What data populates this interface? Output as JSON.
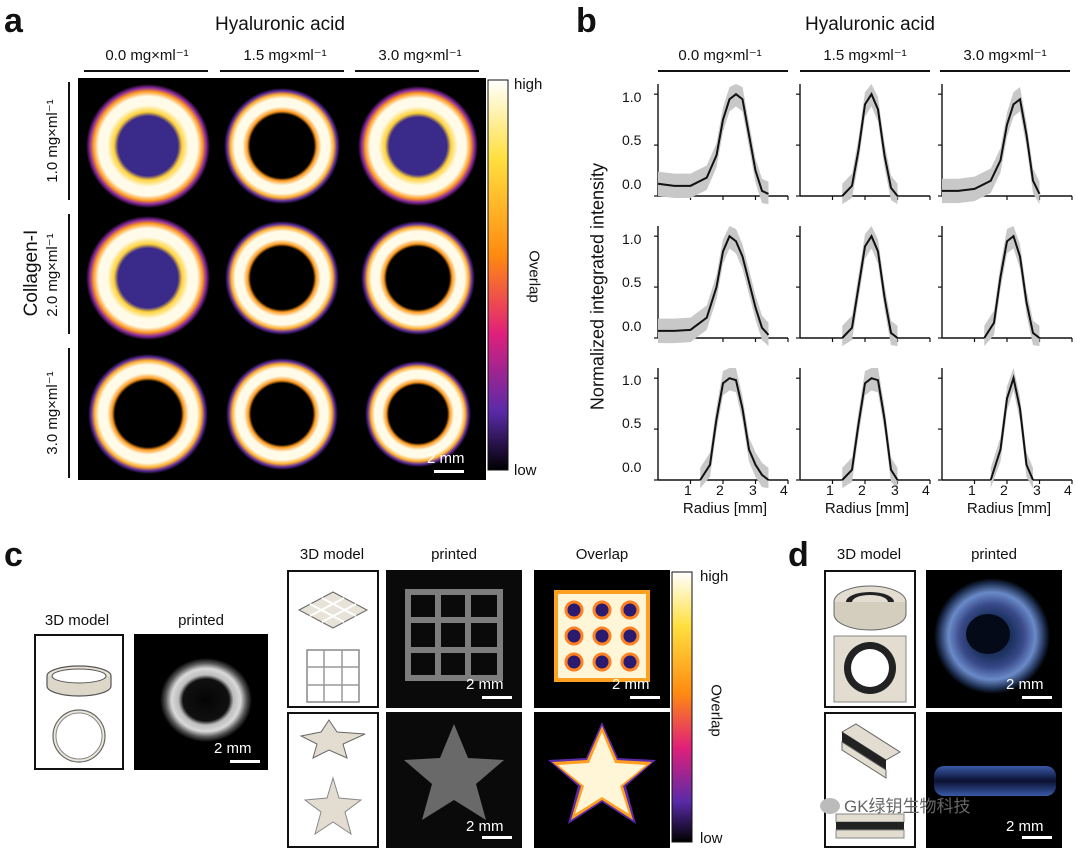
{
  "panels": {
    "a": "a",
    "b": "b",
    "c": "c",
    "d": "d"
  },
  "panel_a": {
    "top_title": "Hyaluronic acid",
    "col_labels": [
      "0.0 mg×ml⁻¹",
      "1.5 mg×ml⁻¹",
      "3.0 mg×ml⁻¹"
    ],
    "row_title": "Collagen-I",
    "row_labels": [
      "1.0 mg×ml⁻¹",
      "2.0 mg×ml⁻¹",
      "3.0 mg×ml⁻¹"
    ],
    "colorbar": {
      "high": "high",
      "low": "low",
      "title": "Overlap"
    },
    "scale_bar": "2 mm"
  },
  "panel_b": {
    "top_title": "Hyaluronic acid",
    "col_labels": [
      "0.0 mg×ml⁻¹",
      "1.5 mg×ml⁻¹",
      "3.0 mg×ml⁻¹"
    ],
    "ylabel": "Normalized integrated intensity",
    "xlabel": "Radius [mm]",
    "yticks": [
      "1.0",
      "0.5",
      "0.0"
    ],
    "xticks": [
      "1",
      "2",
      "3",
      "4"
    ]
  },
  "panel_c": {
    "ring_model_label": "3D model",
    "ring_printed_label": "printed",
    "grid_model_label": "3D model",
    "grid_printed_label": "printed",
    "overlap_label": "Overlap",
    "colorbar": {
      "high": "high",
      "low": "low",
      "title": "Overlap"
    },
    "scale_bar": "2 mm"
  },
  "panel_d": {
    "model_label": "3D model",
    "printed_label": "printed",
    "scale_bar": "2 mm"
  },
  "watermark": "GK绿钥生物科技",
  "chart_data": [
    {
      "type": "line",
      "grid_row": 1,
      "grid_col": 1,
      "xlim": [
        0,
        4
      ],
      "ylim": [
        0,
        1.1
      ],
      "x": [
        0,
        0.5,
        1,
        1.5,
        1.8,
        2.0,
        2.2,
        2.4,
        2.6,
        2.8,
        3.0,
        3.2,
        3.4
      ],
      "series": [
        {
          "values": [
            0.12,
            0.1,
            0.1,
            0.18,
            0.4,
            0.75,
            0.95,
            1.0,
            0.95,
            0.6,
            0.25,
            0.05,
            0.02
          ]
        }
      ]
    },
    {
      "type": "line",
      "grid_row": 1,
      "grid_col": 2,
      "xlim": [
        0,
        4
      ],
      "ylim": [
        0,
        1.1
      ],
      "x": [
        1.3,
        1.6,
        1.8,
        2.0,
        2.2,
        2.4,
        2.6,
        2.8,
        3.0
      ],
      "series": [
        {
          "values": [
            0.0,
            0.1,
            0.45,
            0.9,
            1.0,
            0.85,
            0.4,
            0.08,
            0.0
          ]
        }
      ]
    },
    {
      "type": "line",
      "grid_row": 1,
      "grid_col": 3,
      "xlim": [
        0,
        4
      ],
      "ylim": [
        0,
        1.1
      ],
      "x": [
        0,
        0.5,
        1,
        1.5,
        1.8,
        2.0,
        2.2,
        2.4,
        2.6,
        2.8,
        3.0
      ],
      "series": [
        {
          "values": [
            0.05,
            0.05,
            0.07,
            0.15,
            0.35,
            0.7,
            0.9,
            0.95,
            0.6,
            0.15,
            0.02
          ]
        }
      ]
    },
    {
      "type": "line",
      "grid_row": 2,
      "grid_col": 1,
      "xlim": [
        0,
        4
      ],
      "ylim": [
        0,
        1.1
      ],
      "x": [
        0,
        0.5,
        1,
        1.5,
        1.8,
        2.0,
        2.2,
        2.4,
        2.6,
        2.8,
        3.0,
        3.2,
        3.4
      ],
      "series": [
        {
          "values": [
            0.07,
            0.07,
            0.08,
            0.2,
            0.5,
            0.85,
            1.0,
            0.95,
            0.8,
            0.55,
            0.3,
            0.1,
            0.03
          ]
        }
      ]
    },
    {
      "type": "line",
      "grid_row": 2,
      "grid_col": 2,
      "xlim": [
        0,
        4
      ],
      "ylim": [
        0,
        1.1
      ],
      "x": [
        1.3,
        1.6,
        1.8,
        2.0,
        2.2,
        2.4,
        2.6,
        2.8,
        3.0
      ],
      "series": [
        {
          "values": [
            0.0,
            0.1,
            0.5,
            0.9,
            1.0,
            0.85,
            0.4,
            0.05,
            0.0
          ]
        }
      ]
    },
    {
      "type": "line",
      "grid_row": 2,
      "grid_col": 3,
      "xlim": [
        0,
        4
      ],
      "ylim": [
        0,
        1.1
      ],
      "x": [
        1.3,
        1.6,
        1.8,
        2.0,
        2.2,
        2.4,
        2.6,
        2.8,
        3.0
      ],
      "series": [
        {
          "values": [
            0.0,
            0.15,
            0.6,
            0.95,
            1.0,
            0.8,
            0.35,
            0.05,
            0.0
          ]
        }
      ]
    },
    {
      "type": "line",
      "grid_row": 3,
      "grid_col": 1,
      "xlim": [
        0,
        4
      ],
      "ylim": [
        0,
        1.1
      ],
      "x": [
        1.3,
        1.6,
        1.8,
        2.0,
        2.2,
        2.4,
        2.6,
        2.8,
        3.0,
        3.2,
        3.4
      ],
      "series": [
        {
          "values": [
            0.0,
            0.15,
            0.6,
            0.95,
            1.0,
            0.98,
            0.7,
            0.3,
            0.15,
            0.05,
            0.0
          ]
        }
      ]
    },
    {
      "type": "line",
      "grid_row": 3,
      "grid_col": 2,
      "xlim": [
        0,
        4
      ],
      "ylim": [
        0,
        1.1
      ],
      "x": [
        1.3,
        1.6,
        1.8,
        2.0,
        2.2,
        2.4,
        2.6,
        2.8,
        3.0
      ],
      "series": [
        {
          "values": [
            0.0,
            0.1,
            0.55,
            0.95,
            1.0,
            0.98,
            0.6,
            0.1,
            0.0
          ]
        }
      ]
    },
    {
      "type": "line",
      "grid_row": 3,
      "grid_col": 3,
      "xlim": [
        0,
        4
      ],
      "ylim": [
        0,
        1.1
      ],
      "x": [
        1.5,
        1.8,
        2.0,
        2.2,
        2.4,
        2.6,
        2.8
      ],
      "series": [
        {
          "values": [
            0.0,
            0.3,
            0.8,
            1.0,
            0.7,
            0.15,
            0.0
          ]
        }
      ]
    }
  ]
}
